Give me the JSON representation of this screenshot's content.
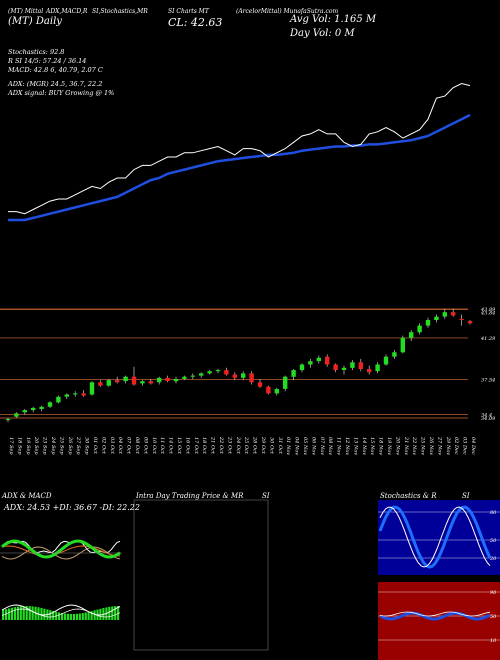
{
  "header": {
    "line1": [
      "(MT) Mittal",
      "ADX,MACD,R",
      "SI,Stochastics,MR",
      "SI Charts MT",
      "(ArcelorMittal) MunafaSutra.com"
    ],
    "line2_left": "(MT) Daily",
    "line2_price": "CL: 42.63",
    "avg_vol": "Avg Vol: 1.165 M",
    "day_vol": "Day Vol: 0   M"
  },
  "indicators": {
    "stochastics": "Stochastics: 92.8",
    "rsi": "R  SI 14/5: 57.24 / 36.14",
    "macd": "MACD: 42.8        6, 40.79, 2.07 C",
    "adx": "ADX:                (MGR) 24.5, 36.7, 22.2",
    "adx_signal": "ADX  signal:                    BUY Growing @ 1%"
  },
  "panels": {
    "adx_title": "ADX  & MACD",
    "adx_values": "ADX: 24.53 +DI: 36.67 -DI: 22.22",
    "intraday_title": "Intra  Day Trading Price  & MR",
    "intraday_suffix": "SI",
    "stoch_title": "Stochastics & R",
    "stoch_suffix": "SI",
    "stoch_levels": [
      "80",
      "50",
      "20"
    ],
    "rsi_levels": [
      "90",
      "50",
      "10"
    ]
  },
  "colors": {
    "background": "#000000",
    "ma_line": "#1f4fe0",
    "price_line": "#ffffff",
    "up_candle": "#22dd22",
    "down_candle": "#ee2222",
    "support_line": "#a0522d",
    "stoch_bg": "#000099",
    "rsi_bg": "#990000"
  },
  "chart_data": {
    "type": "candlestick",
    "dates": [
      "17 Sep",
      "18 Sep",
      "19 Sep",
      "20 Sep",
      "23 Sep",
      "24 Sep",
      "25 Sep",
      "26 Sep",
      "27 Sep",
      "30 Sep",
      "01 Oct",
      "02 Oct",
      "03 Oct",
      "04 Oct",
      "07 Oct",
      "08 Oct",
      "09 Oct",
      "10 Oct",
      "11 Oct",
      "14 Oct",
      "15 Oct",
      "16 Oct",
      "17 Oct",
      "18 Oct",
      "21 Oct",
      "22 Oct",
      "23 Oct",
      "24 Oct",
      "25 Oct",
      "28 Oct",
      "29 Oct",
      "30 Oct",
      "31 Oct",
      "01 Nov",
      "04 Nov",
      "05 Nov",
      "06 Nov",
      "07 Nov",
      "08 Nov",
      "11 Nov",
      "12 Nov",
      "13 Nov",
      "14 Nov",
      "15 Nov",
      "18 Nov",
      "19 Nov",
      "20 Nov",
      "21 Nov",
      "22 Nov",
      "25 Nov",
      "26 Nov",
      "27 Nov",
      "29 Nov",
      "02 Dec",
      "03 Dec",
      "04 Dec"
    ],
    "price_levels": [
      43.89,
      43.84,
      41.29,
      37.54,
      34.4,
      34.09
    ],
    "ohlc": [
      [
        33.9,
        34.1,
        33.7,
        34.0
      ],
      [
        34.2,
        34.6,
        34.1,
        34.5
      ],
      [
        34.6,
        34.9,
        34.4,
        34.8
      ],
      [
        34.8,
        35.1,
        34.6,
        35.0
      ],
      [
        34.9,
        35.2,
        34.7,
        35.1
      ],
      [
        35.1,
        35.6,
        35.0,
        35.5
      ],
      [
        35.5,
        36.1,
        35.4,
        36.0
      ],
      [
        36.0,
        36.3,
        35.8,
        36.2
      ],
      [
        36.2,
        36.5,
        36.0,
        36.3
      ],
      [
        36.3,
        36.6,
        36.0,
        36.1
      ],
      [
        36.2,
        37.4,
        36.1,
        37.3
      ],
      [
        37.3,
        37.5,
        36.9,
        37.0
      ],
      [
        37.0,
        37.6,
        36.9,
        37.5
      ],
      [
        37.5,
        37.8,
        37.2,
        37.3
      ],
      [
        37.4,
        37.9,
        37.2,
        37.8
      ],
      [
        37.8,
        38.7,
        37.0,
        37.1
      ],
      [
        37.2,
        37.5,
        37.0,
        37.4
      ],
      [
        37.4,
        37.6,
        37.1,
        37.2
      ],
      [
        37.3,
        37.8,
        37.1,
        37.7
      ],
      [
        37.7,
        37.9,
        37.3,
        37.4
      ],
      [
        37.4,
        37.8,
        37.2,
        37.6
      ],
      [
        37.6,
        37.9,
        37.5,
        37.8
      ],
      [
        37.8,
        38.1,
        37.6,
        37.9
      ],
      [
        37.9,
        38.2,
        37.7,
        38.1
      ],
      [
        38.1,
        38.4,
        38.0,
        38.3
      ],
      [
        38.3,
        38.5,
        38.1,
        38.4
      ],
      [
        38.4,
        38.6,
        37.9,
        38.0
      ],
      [
        38.0,
        38.2,
        37.5,
        37.7
      ],
      [
        37.7,
        38.3,
        37.5,
        38.1
      ],
      [
        38.1,
        38.3,
        37.1,
        37.3
      ],
      [
        37.3,
        37.6,
        36.8,
        36.9
      ],
      [
        36.9,
        37.0,
        36.2,
        36.3
      ],
      [
        36.3,
        36.8,
        36.1,
        36.7
      ],
      [
        36.7,
        37.9,
        36.5,
        37.8
      ],
      [
        37.8,
        38.5,
        37.5,
        38.4
      ],
      [
        38.4,
        39.0,
        38.2,
        38.9
      ],
      [
        38.9,
        39.4,
        38.6,
        39.2
      ],
      [
        39.2,
        39.7,
        39.0,
        39.5
      ],
      [
        39.6,
        39.8,
        38.7,
        38.9
      ],
      [
        38.9,
        39.0,
        38.2,
        38.4
      ],
      [
        38.4,
        38.8,
        38.0,
        38.6
      ],
      [
        38.6,
        39.3,
        38.4,
        39.1
      ],
      [
        39.1,
        39.4,
        38.3,
        38.5
      ],
      [
        38.5,
        38.8,
        38.0,
        38.2
      ],
      [
        38.3,
        39.1,
        38.1,
        38.9
      ],
      [
        38.9,
        39.8,
        38.8,
        39.6
      ],
      [
        39.6,
        40.2,
        39.4,
        40.0
      ],
      [
        40.0,
        41.5,
        39.9,
        41.3
      ],
      [
        41.3,
        42.0,
        41.0,
        41.8
      ],
      [
        41.8,
        42.6,
        41.6,
        42.4
      ],
      [
        42.4,
        43.1,
        42.2,
        42.9
      ],
      [
        42.9,
        43.4,
        42.7,
        43.2
      ],
      [
        43.2,
        43.9,
        43.0,
        43.6
      ],
      [
        43.6,
        43.9,
        43.2,
        43.3
      ],
      [
        43.0,
        43.4,
        42.4,
        42.9
      ],
      [
        42.8,
        42.9,
        42.5,
        42.6
      ]
    ],
    "close_line": [
      36.4,
      36.4,
      36.3,
      36.5,
      36.7,
      36.9,
      37.0,
      37.0,
      37.2,
      37.4,
      37.6,
      37.5,
      37.8,
      38.0,
      38.0,
      38.4,
      38.6,
      38.6,
      38.8,
      39.0,
      39.0,
      39.2,
      39.2,
      39.3,
      39.4,
      39.5,
      39.3,
      39.1,
      39.4,
      39.4,
      39.3,
      39.0,
      39.2,
      39.4,
      39.7,
      40.0,
      40.1,
      40.3,
      40.1,
      40.1,
      39.7,
      39.5,
      39.6,
      40.1,
      40.2,
      40.4,
      40.2,
      39.9,
      40.1,
      40.3,
      40.8,
      41.8,
      41.9,
      42.3,
      42.5,
      42.4
    ],
    "ma_line": [
      36.0,
      36.0,
      36.0,
      36.1,
      36.2,
      36.3,
      36.4,
      36.5,
      36.6,
      36.7,
      36.8,
      36.9,
      37.0,
      37.1,
      37.3,
      37.5,
      37.7,
      37.9,
      38.0,
      38.2,
      38.3,
      38.4,
      38.5,
      38.6,
      38.7,
      38.8,
      38.85,
      38.9,
      38.95,
      39.0,
      39.05,
      39.1,
      39.1,
      39.15,
      39.2,
      39.3,
      39.35,
      39.4,
      39.45,
      39.5,
      39.5,
      39.55,
      39.55,
      39.6,
      39.6,
      39.65,
      39.7,
      39.75,
      39.8,
      39.9,
      40.0,
      40.2,
      40.4,
      40.6,
      40.8,
      41.0
    ]
  }
}
